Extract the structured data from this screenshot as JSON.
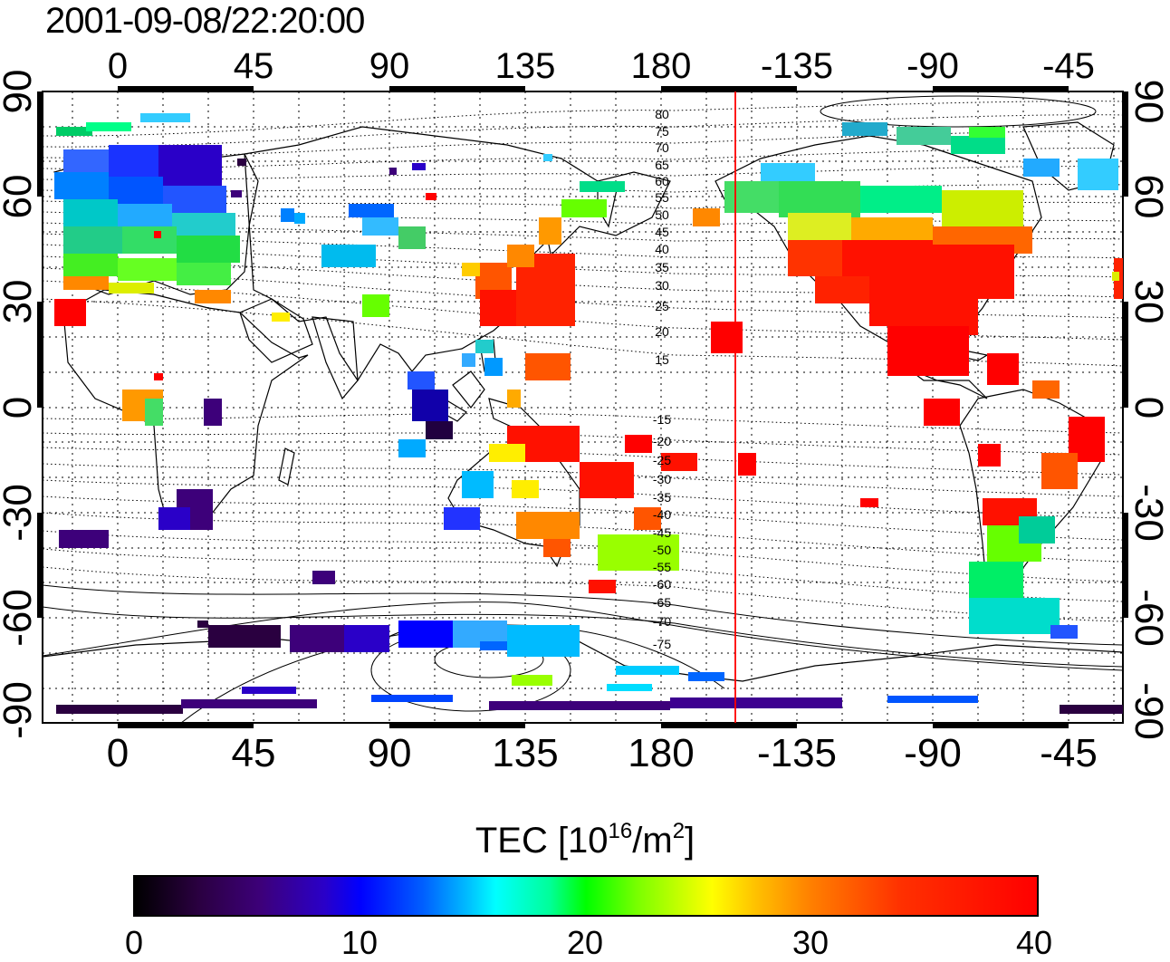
{
  "title": "2001-09-08/22:20:00",
  "x_ticks": [
    "0",
    "45",
    "90",
    "135",
    "180",
    "-135",
    "-90",
    "-45"
  ],
  "y_ticks": [
    "90",
    "60",
    "30",
    "0",
    "-30",
    "-60",
    "-90"
  ],
  "contour_labels_north": [
    "80",
    "75",
    "70",
    "65",
    "60",
    "55",
    "50",
    "45",
    "40",
    "35",
    "30",
    "25",
    "20",
    "15"
  ],
  "contour_labels_south": [
    "-15",
    "-20",
    "-25",
    "-30",
    "-35",
    "-40",
    "-45",
    "-50",
    "-55",
    "-60",
    "-65",
    "-70",
    "-75"
  ],
  "colorbar": {
    "label_main": "TEC  [10",
    "label_exp": "16",
    "label_unit": "/m",
    "label_exp2": "2",
    "label_end": "]",
    "ticks": [
      "0",
      "10",
      "20",
      "30",
      "40"
    ],
    "min": 0,
    "max": 40
  },
  "marker_longitude": -157,
  "colors": {
    "background": "#ffffff",
    "marker_line": "#ff0000",
    "coast": "#000000"
  }
}
